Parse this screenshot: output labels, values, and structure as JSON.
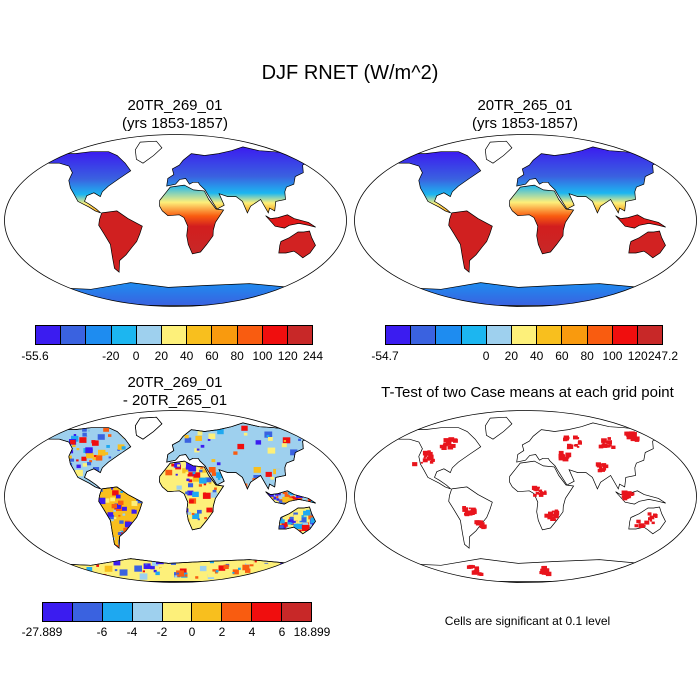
{
  "title": "DJF RNET (W/m^2)",
  "panels": [
    {
      "line1": "20TR_269_01",
      "line2": "(yrs 1853-1857)",
      "colorbar": {
        "colors": [
          "#3b1cf0",
          "#3a62e0",
          "#1e8cf0",
          "#1cb6f0",
          "#9ed0ee",
          "#fdf07a",
          "#f8bf1e",
          "#f99a0e",
          "#f95c10",
          "#f00e0e",
          "#c82828"
        ],
        "labels": [
          "-55.6",
          "-20",
          "0",
          "20",
          "40",
          "60",
          "80",
          "100",
          "120",
          "244"
        ]
      }
    },
    {
      "line1": "20TR_265_01",
      "line2": "(yrs 1853-1857)",
      "colorbar": {
        "colors": [
          "#3b1cf0",
          "#3a62e0",
          "#1e8cf0",
          "#1cb6f0",
          "#9ed0ee",
          "#fdf07a",
          "#f8bf1e",
          "#f99a0e",
          "#f95c10",
          "#f00e0e",
          "#c82828"
        ],
        "labels": [
          "-54.7",
          "0",
          "20",
          "40",
          "60",
          "80",
          "100",
          "120",
          "247.2"
        ]
      }
    },
    {
      "line1": "20TR_269_01",
      "line2": "- 20TR_265_01",
      "colorbar": {
        "colors": [
          "#3b1cf0",
          "#3a62e0",
          "#1ea8f0",
          "#9ed0ee",
          "#fdf07a",
          "#f8bf1e",
          "#f95c10",
          "#f00e0e",
          "#c82828"
        ],
        "labels": [
          "-27.889",
          "-6",
          "-4",
          "-2",
          "0",
          "2",
          "4",
          "6",
          "18.899"
        ]
      }
    },
    {
      "line1": "T-Test of two Case means at each grid point",
      "note": "Cells are significant at 0.1 level"
    }
  ]
}
